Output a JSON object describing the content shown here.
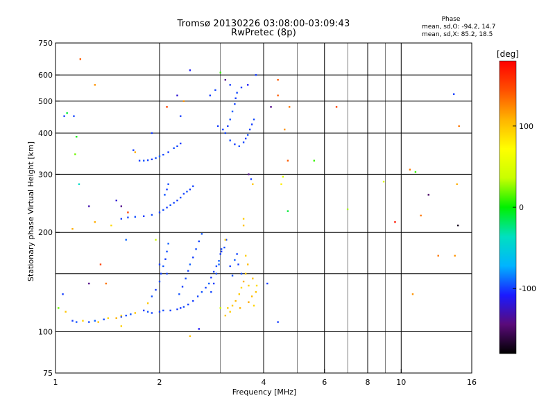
{
  "header": {
    "title": "Tromsø 20130226 03:08:00-03:09:43",
    "subtitle": "RwPretec (8p)"
  },
  "stats": {
    "heading": "Phase",
    "o_mode": "mean, sd,O: -94.2, 14.7",
    "x_mode": "mean, sd,X:  85.2, 18.5"
  },
  "chart_data": {
    "type": "scatter",
    "title": "Tromsø 20130226 03:08:00-03:09:43",
    "subtitle": "RwPretec (8p)",
    "xlabel": "Frequency [MHz]",
    "ylabel": "Stationary phase Virtual Height [km]",
    "x_scale": "log",
    "y_scale": "log",
    "xlim": [
      1,
      16
    ],
    "ylim": [
      75,
      750
    ],
    "x_ticks": [
      1,
      2,
      4,
      6,
      8,
      10,
      16
    ],
    "x_tick_labels": [
      "1",
      "2",
      "4",
      "6",
      "8",
      "10",
      "16"
    ],
    "x_grid": [
      2,
      4,
      6,
      8,
      10
    ],
    "x_minor_grid": [
      3,
      5,
      7,
      9
    ],
    "y_ticks": [
      75,
      100,
      200,
      300,
      400,
      500,
      600,
      750
    ],
    "y_tick_labels": [
      "75",
      "100",
      "200",
      "300",
      "400",
      "500",
      "600",
      "750"
    ],
    "y_grid": [
      100,
      150,
      200,
      300,
      400,
      500,
      600
    ],
    "grid": true,
    "colorbar": {
      "label": "[deg]",
      "range": [
        -180,
        180
      ],
      "ticks": [
        100,
        0,
        -100
      ],
      "tick_labels": [
        "100",
        "0",
        "-100"
      ],
      "colors": [
        "#000000",
        "#5a0a7a",
        "#1a1aff",
        "#00b4ff",
        "#00e0c0",
        "#00f000",
        "#c8ff00",
        "#ffff00",
        "#ffb400",
        "#ff5000",
        "#ff0000"
      ]
    },
    "points": [
      [
        1.12,
        108,
        -100
      ],
      [
        1.15,
        107,
        -95
      ],
      [
        1.2,
        108,
        95
      ],
      [
        1.25,
        107,
        -98
      ],
      [
        1.3,
        108,
        -92
      ],
      [
        1.33,
        107,
        100
      ],
      [
        1.38,
        109,
        -96
      ],
      [
        1.42,
        110,
        92
      ],
      [
        1.5,
        110,
        90
      ],
      [
        1.55,
        111,
        -100
      ],
      [
        1.6,
        112,
        -97
      ],
      [
        1.65,
        113,
        -94
      ],
      [
        1.7,
        114,
        100
      ],
      [
        1.8,
        116,
        -100
      ],
      [
        1.85,
        115,
        -95
      ],
      [
        1.9,
        114,
        -98
      ],
      [
        2.0,
        115,
        -100
      ],
      [
        2.05,
        116,
        -96
      ],
      [
        2.15,
        116,
        -99
      ],
      [
        2.25,
        117,
        -100
      ],
      [
        2.3,
        118,
        -102
      ],
      [
        2.35,
        119,
        -97
      ],
      [
        2.42,
        121,
        -99
      ],
      [
        2.5,
        124,
        -100
      ],
      [
        2.58,
        128,
        -98
      ],
      [
        2.65,
        132,
        -95
      ],
      [
        2.72,
        136,
        -99
      ],
      [
        2.78,
        140,
        -92
      ],
      [
        2.82,
        146,
        -100
      ],
      [
        2.87,
        152,
        -98
      ],
      [
        2.92,
        158,
        -96
      ],
      [
        2.97,
        164,
        -92
      ],
      [
        3.0,
        172,
        -100
      ],
      [
        3.02,
        178,
        -98
      ],
      [
        1.85,
        122,
        100
      ],
      [
        1.9,
        128,
        -95
      ],
      [
        1.95,
        134,
        -100
      ],
      [
        2.0,
        142,
        -97
      ],
      [
        2.02,
        150,
        -98
      ],
      [
        2.05,
        158,
        -94
      ],
      [
        2.08,
        166,
        -100
      ],
      [
        2.1,
        175,
        -96
      ],
      [
        2.12,
        185,
        -92
      ],
      [
        2.28,
        130,
        -95
      ],
      [
        2.33,
        137,
        -100
      ],
      [
        2.38,
        145,
        -96
      ],
      [
        2.42,
        153,
        -98
      ],
      [
        2.45,
        160,
        -92
      ],
      [
        2.5,
        168,
        -100
      ],
      [
        2.55,
        178,
        -96
      ],
      [
        2.6,
        188,
        -98
      ],
      [
        2.65,
        198,
        -94
      ],
      [
        2.82,
        132,
        -98
      ],
      [
        2.87,
        140,
        -100
      ],
      [
        2.92,
        150,
        -96
      ],
      [
        2.97,
        160,
        -92
      ],
      [
        3.02,
        175,
        -100
      ],
      [
        3.08,
        180,
        -96
      ],
      [
        3.12,
        190,
        -98
      ],
      [
        3.2,
        158,
        -100
      ],
      [
        3.25,
        148,
        -95
      ],
      [
        3.3,
        165,
        -92
      ],
      [
        3.35,
        172,
        -98
      ],
      [
        3.38,
        160,
        -100
      ],
      [
        3.45,
        150,
        -96
      ],
      [
        1.55,
        220,
        -100
      ],
      [
        1.62,
        222,
        -98
      ],
      [
        1.7,
        223,
        -96
      ],
      [
        1.8,
        224,
        -100
      ],
      [
        1.9,
        226,
        -97
      ],
      [
        2.0,
        230,
        -99
      ],
      [
        2.05,
        234,
        -96
      ],
      [
        2.1,
        238,
        -100
      ],
      [
        2.15,
        242,
        -95
      ],
      [
        2.2,
        246,
        -98
      ],
      [
        2.25,
        250,
        -100
      ],
      [
        2.3,
        255,
        -97
      ],
      [
        2.35,
        262,
        -99
      ],
      [
        2.4,
        266,
        -96
      ],
      [
        2.45,
        270,
        -100
      ],
      [
        2.5,
        276,
        -98
      ],
      [
        2.07,
        260,
        -95
      ],
      [
        2.1,
        270,
        -100
      ],
      [
        2.12,
        280,
        -97
      ],
      [
        1.75,
        330,
        -100
      ],
      [
        1.8,
        330,
        -95
      ],
      [
        1.85,
        331,
        -98
      ],
      [
        1.9,
        333,
        -100
      ],
      [
        1.95,
        336,
        -96
      ],
      [
        2.0,
        340,
        -92
      ],
      [
        2.05,
        344,
        -98
      ],
      [
        2.12,
        350,
        -100
      ],
      [
        2.2,
        360,
        -96
      ],
      [
        2.25,
        365,
        -98
      ],
      [
        2.3,
        372,
        -100
      ],
      [
        3.1,
        400,
        -98
      ],
      [
        3.15,
        420,
        -100
      ],
      [
        3.2,
        440,
        -96
      ],
      [
        3.25,
        465,
        -92
      ],
      [
        3.3,
        490,
        -98
      ],
      [
        3.32,
        510,
        -100
      ],
      [
        3.35,
        530,
        -97
      ],
      [
        3.2,
        380,
        -96
      ],
      [
        3.3,
        370,
        -100
      ],
      [
        3.4,
        365,
        -95
      ],
      [
        3.5,
        375,
        -98
      ],
      [
        3.55,
        385,
        -100
      ],
      [
        3.6,
        395,
        -96
      ],
      [
        3.65,
        410,
        -99
      ],
      [
        3.7,
        425,
        -100
      ],
      [
        3.75,
        440,
        -97
      ],
      [
        2.95,
        420,
        -100
      ],
      [
        3.15,
        118,
        95
      ],
      [
        3.25,
        120,
        100
      ],
      [
        3.32,
        124,
        105
      ],
      [
        3.4,
        130,
        98
      ],
      [
        3.45,
        136,
        92
      ],
      [
        3.5,
        142,
        110
      ],
      [
        3.55,
        150,
        100
      ],
      [
        3.62,
        138,
        95
      ],
      [
        3.7,
        128,
        105
      ],
      [
        3.75,
        120,
        92
      ],
      [
        3.8,
        132,
        100
      ],
      [
        3.6,
        160,
        104
      ],
      [
        3.55,
        170,
        96
      ],
      [
        3.72,
        145,
        102
      ],
      [
        3.82,
        138,
        90
      ],
      [
        3.1,
        112,
        100
      ],
      [
        3.2,
        115,
        96
      ],
      [
        3.42,
        118,
        108
      ],
      [
        3.62,
        123,
        112
      ],
      [
        3.1,
        190,
        100
      ],
      [
        3.5,
        210,
        102
      ],
      [
        3.5,
        220,
        96
      ],
      [
        1.5,
        110,
        108
      ],
      [
        1.55,
        112,
        96
      ],
      [
        1.18,
        670,
        140
      ],
      [
        1.3,
        560,
        120
      ],
      [
        1.13,
        450,
        -98
      ],
      [
        1.06,
        450,
        -100
      ],
      [
        1.14,
        345,
        20
      ],
      [
        1.08,
        460,
        -10
      ],
      [
        1.15,
        390,
        0
      ],
      [
        1.17,
        280,
        -40
      ],
      [
        1.25,
        240,
        -130
      ],
      [
        1.3,
        215,
        110
      ],
      [
        1.45,
        210,
        90
      ],
      [
        1.5,
        250,
        -120
      ],
      [
        1.55,
        240,
        -140
      ],
      [
        1.62,
        230,
        150
      ],
      [
        1.68,
        355,
        -100
      ],
      [
        1.7,
        350,
        110
      ],
      [
        1.12,
        205,
        110
      ],
      [
        1.6,
        190,
        -90
      ],
      [
        1.35,
        160,
        150
      ],
      [
        1.4,
        140,
        130
      ],
      [
        1.25,
        140,
        -140
      ],
      [
        1.05,
        130,
        -100
      ],
      [
        1.07,
        115,
        100
      ],
      [
        1.02,
        118,
        20
      ],
      [
        1.9,
        400,
        -100
      ],
      [
        2.3,
        450,
        -100
      ],
      [
        2.35,
        500,
        120
      ],
      [
        2.1,
        480,
        150
      ],
      [
        2.25,
        520,
        -120
      ],
      [
        2.45,
        620,
        -110
      ],
      [
        2.8,
        520,
        -100
      ],
      [
        2.9,
        540,
        -98
      ],
      [
        3.0,
        610,
        10
      ],
      [
        3.1,
        580,
        -140
      ],
      [
        3.2,
        560,
        -100
      ],
      [
        3.45,
        550,
        -100
      ],
      [
        3.6,
        560,
        -110
      ],
      [
        3.8,
        600,
        -100
      ],
      [
        4.2,
        480,
        -140
      ],
      [
        4.4,
        520,
        140
      ],
      [
        4.4,
        580,
        140
      ],
      [
        4.75,
        480,
        130
      ],
      [
        4.6,
        410,
        120
      ],
      [
        4.7,
        330,
        140
      ],
      [
        4.55,
        295,
        50
      ],
      [
        4.5,
        280,
        80
      ],
      [
        3.62,
        300,
        -140
      ],
      [
        3.68,
        290,
        -100
      ],
      [
        3.72,
        280,
        100
      ],
      [
        4.1,
        140,
        -100
      ],
      [
        4.4,
        107,
        -100
      ],
      [
        4.7,
        232,
        -10
      ],
      [
        5.6,
        330,
        10
      ],
      [
        6.5,
        480,
        150
      ],
      [
        7.0,
        235,
        30
      ],
      [
        8.9,
        285,
        50
      ],
      [
        9.6,
        215,
        170
      ],
      [
        10.6,
        310,
        130
      ],
      [
        11.0,
        305,
        10
      ],
      [
        11.4,
        225,
        130
      ],
      [
        12.0,
        260,
        -150
      ],
      [
        12.8,
        170,
        130
      ],
      [
        14.2,
        525,
        -100
      ],
      [
        14.7,
        420,
        130
      ],
      [
        14.6,
        210,
        -170
      ],
      [
        14.5,
        280,
        110
      ],
      [
        14.3,
        170,
        120
      ],
      [
        10.8,
        130,
        120
      ],
      [
        1.95,
        190,
        40
      ],
      [
        2.0,
        160,
        -100
      ],
      [
        2.1,
        150,
        -98
      ],
      [
        1.55,
        104,
        95
      ],
      [
        2.45,
        97,
        100
      ],
      [
        2.6,
        102,
        -110
      ],
      [
        3.05,
        410,
        -100
      ],
      [
        3.0,
        118,
        40
      ]
    ]
  }
}
